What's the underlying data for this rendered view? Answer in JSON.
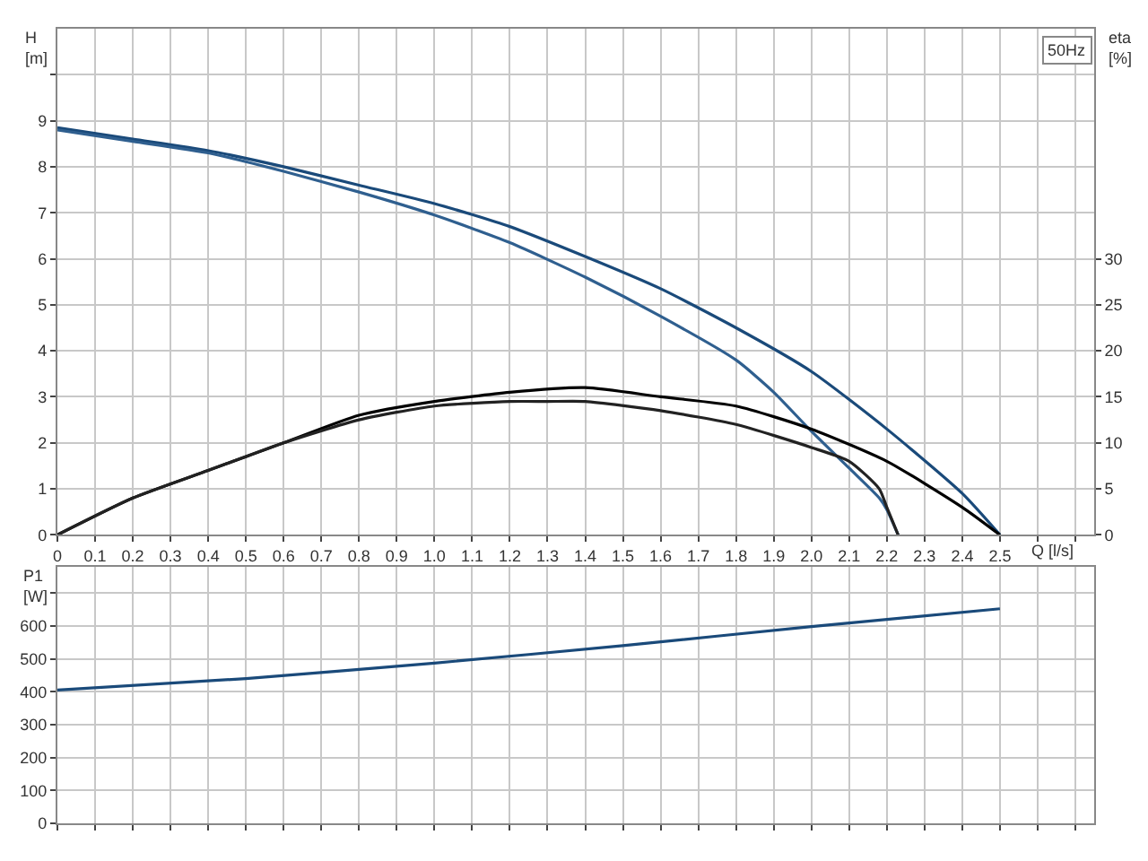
{
  "chart_data": [
    {
      "type": "line",
      "annotations": [
        "50Hz"
      ],
      "xlabel": "Q [l/s]",
      "ylabel": "H [m]",
      "y2label": "eta [%]",
      "xlim": [
        0,
        2.75
      ],
      "xticks": [
        0,
        0.1,
        0.2,
        0.3,
        0.4,
        0.5,
        0.6,
        0.7,
        0.8,
        0.9,
        {
          "value": 1.0,
          "label": "1.0"
        },
        1.1,
        1.2,
        1.3,
        1.4,
        1.5,
        1.6,
        1.7,
        1.8,
        1.9,
        {
          "value": 2.0,
          "label": "2.0"
        },
        2.1,
        2.2,
        2.3,
        2.4,
        2.5,
        {
          "value": 2.6,
          "label": null
        },
        {
          "value": 2.7,
          "label": null
        }
      ],
      "ylim": [
        0,
        11
      ],
      "yticks": [
        0,
        1,
        2,
        3,
        4,
        5,
        6,
        7,
        8,
        9,
        {
          "value": 10,
          "label": null
        }
      ],
      "y2lim": [
        0,
        55
      ],
      "y2ticks": [
        0,
        5,
        10,
        15,
        20,
        25,
        30
      ],
      "grid": true,
      "marker": "none",
      "line_style": "solid",
      "series": [
        {
          "color": "#1a4a7a",
          "x": [
            0,
            0.2,
            0.4,
            0.6,
            0.8,
            1.0,
            1.2,
            1.4,
            1.6,
            1.8,
            2.0,
            2.2,
            2.4,
            2.5
          ],
          "values": [
            8.85,
            8.6,
            8.35,
            8.0,
            7.6,
            7.2,
            6.7,
            6.05,
            5.35,
            4.5,
            3.55,
            2.3,
            0.9,
            0
          ]
        },
        {
          "color": "#2f5f8f",
          "x": [
            0,
            0.2,
            0.4,
            0.6,
            0.8,
            1.0,
            1.2,
            1.4,
            1.6,
            1.8,
            1.9,
            2.0,
            2.1,
            2.18,
            2.2,
            2.23
          ],
          "values": [
            8.8,
            8.55,
            8.3,
            7.9,
            7.45,
            6.95,
            6.35,
            5.6,
            4.75,
            3.8,
            3.1,
            2.25,
            1.45,
            0.8,
            0.55,
            0
          ]
        },
        {
          "color": "#000000",
          "axis": "y2",
          "x": [
            0,
            0.2,
            0.4,
            0.6,
            0.8,
            1.0,
            1.2,
            1.4,
            1.6,
            1.8,
            2.0,
            2.2,
            2.4,
            2.5
          ],
          "values": [
            0,
            4,
            7,
            10,
            13,
            14.5,
            15.5,
            16,
            15,
            14,
            11.5,
            8,
            3,
            0
          ]
        },
        {
          "color": "#222222",
          "axis": "y2",
          "x": [
            0,
            0.2,
            0.4,
            0.6,
            0.8,
            1.0,
            1.2,
            1.3,
            1.4,
            1.6,
            1.8,
            2.0,
            2.1,
            2.18,
            2.2,
            2.23
          ],
          "values": [
            0,
            4,
            7,
            10,
            12.5,
            14,
            14.5,
            14.5,
            14.5,
            13.5,
            12,
            9.5,
            8,
            5,
            3,
            0
          ]
        }
      ]
    },
    {
      "type": "line",
      "ylabel": "P1 [W]",
      "tick_labels": "y",
      "xlim": [
        0,
        2.75
      ],
      "xticks": [
        0,
        0.1,
        0.2,
        0.3,
        0.4,
        0.5,
        0.6,
        0.7,
        0.8,
        0.9,
        1.0,
        1.1,
        1.2,
        1.3,
        1.4,
        1.5,
        1.6,
        1.7,
        1.8,
        1.9,
        2.0,
        2.1,
        2.2,
        2.3,
        2.4,
        2.5,
        2.6,
        2.7
      ],
      "ylim": [
        0,
        780
      ],
      "yticks": [
        0,
        100,
        200,
        300,
        400,
        500,
        600,
        {
          "value": 700,
          "label": null
        }
      ],
      "grid": true,
      "marker": "none",
      "line_style": "solid",
      "series": [
        {
          "color": "#1a4a7a",
          "x": [
            0,
            0.5,
            1.0,
            1.5,
            2.0,
            2.5
          ],
          "values": [
            405,
            440,
            487,
            540,
            598,
            652
          ]
        }
      ]
    }
  ]
}
